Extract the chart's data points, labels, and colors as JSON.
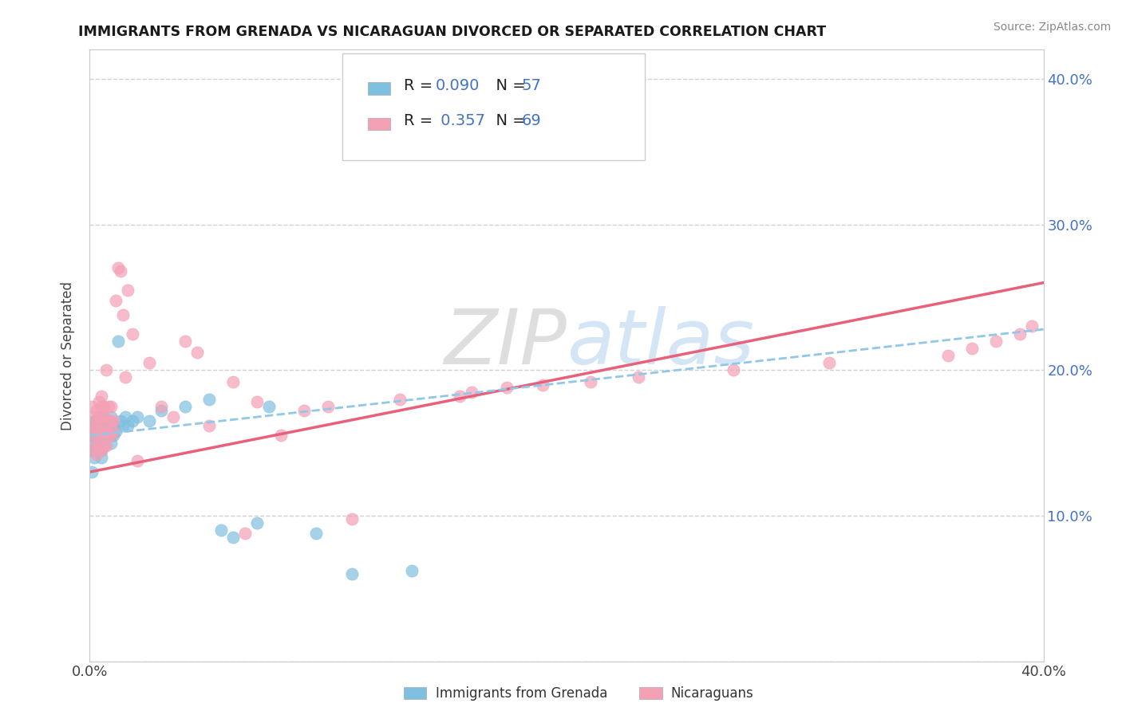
{
  "title": "IMMIGRANTS FROM GRENADA VS NICARAGUAN DIVORCED OR SEPARATED CORRELATION CHART",
  "source": "Source: ZipAtlas.com",
  "ylabel": "Divorced or Separated",
  "xlim": [
    0.0,
    0.4
  ],
  "ylim": [
    0.0,
    0.42
  ],
  "xtick_vals": [
    0.0,
    0.1,
    0.2,
    0.3,
    0.4
  ],
  "xtick_labels": [
    "0.0%",
    "",
    "",
    "",
    "40.0%"
  ],
  "ytick_vals": [
    0.0,
    0.1,
    0.2,
    0.3,
    0.4
  ],
  "ytick_right_labels": [
    "",
    "10.0%",
    "20.0%",
    "30.0%",
    "40.0%"
  ],
  "color_blue": "#7fbfdf",
  "color_pink": "#f4a0b5",
  "color_blue_line": "#8fc8e8",
  "color_pink_line": "#e8607a",
  "R_blue": 0.09,
  "N_blue": 57,
  "R_pink": 0.357,
  "N_pink": 69,
  "legend_label_blue": "Immigrants from Grenada",
  "legend_label_pink": "Nicaraguans",
  "watermark": "ZIPAtlas",
  "blue_scatter_x": [
    0.001,
    0.001,
    0.001,
    0.001,
    0.002,
    0.002,
    0.002,
    0.002,
    0.003,
    0.003,
    0.003,
    0.003,
    0.003,
    0.004,
    0.004,
    0.004,
    0.004,
    0.005,
    0.005,
    0.005,
    0.005,
    0.005,
    0.005,
    0.006,
    0.006,
    0.006,
    0.006,
    0.007,
    0.007,
    0.007,
    0.008,
    0.008,
    0.008,
    0.009,
    0.009,
    0.009,
    0.01,
    0.01,
    0.011,
    0.012,
    0.013,
    0.014,
    0.015,
    0.016,
    0.018,
    0.02,
    0.025,
    0.03,
    0.04,
    0.05,
    0.055,
    0.06,
    0.07,
    0.075,
    0.095,
    0.11,
    0.135
  ],
  "blue_scatter_y": [
    0.155,
    0.145,
    0.13,
    0.16,
    0.15,
    0.165,
    0.14,
    0.155,
    0.145,
    0.155,
    0.16,
    0.165,
    0.148,
    0.152,
    0.158,
    0.145,
    0.16,
    0.14,
    0.155,
    0.15,
    0.162,
    0.168,
    0.145,
    0.155,
    0.16,
    0.148,
    0.165,
    0.155,
    0.165,
    0.16,
    0.158,
    0.162,
    0.165,
    0.15,
    0.168,
    0.155,
    0.162,
    0.155,
    0.158,
    0.22,
    0.165,
    0.162,
    0.168,
    0.162,
    0.165,
    0.168,
    0.165,
    0.172,
    0.175,
    0.18,
    0.09,
    0.085,
    0.095,
    0.175,
    0.088,
    0.06,
    0.062
  ],
  "pink_scatter_x": [
    0.001,
    0.001,
    0.001,
    0.002,
    0.002,
    0.002,
    0.003,
    0.003,
    0.003,
    0.003,
    0.004,
    0.004,
    0.004,
    0.004,
    0.005,
    0.005,
    0.005,
    0.005,
    0.005,
    0.006,
    0.006,
    0.006,
    0.006,
    0.007,
    0.007,
    0.007,
    0.008,
    0.008,
    0.008,
    0.009,
    0.009,
    0.009,
    0.01,
    0.01,
    0.011,
    0.012,
    0.013,
    0.014,
    0.015,
    0.016,
    0.018,
    0.02,
    0.025,
    0.03,
    0.035,
    0.04,
    0.045,
    0.05,
    0.06,
    0.065,
    0.07,
    0.08,
    0.09,
    0.1,
    0.11,
    0.13,
    0.155,
    0.16,
    0.175,
    0.19,
    0.21,
    0.23,
    0.27,
    0.31,
    0.36,
    0.37,
    0.38,
    0.39,
    0.395
  ],
  "pink_scatter_y": [
    0.15,
    0.16,
    0.175,
    0.145,
    0.158,
    0.168,
    0.142,
    0.155,
    0.165,
    0.172,
    0.148,
    0.158,
    0.168,
    0.178,
    0.145,
    0.155,
    0.165,
    0.175,
    0.182,
    0.148,
    0.158,
    0.168,
    0.175,
    0.148,
    0.158,
    0.2,
    0.155,
    0.165,
    0.175,
    0.155,
    0.165,
    0.175,
    0.158,
    0.165,
    0.248,
    0.27,
    0.268,
    0.238,
    0.195,
    0.255,
    0.225,
    0.138,
    0.205,
    0.175,
    0.168,
    0.22,
    0.212,
    0.162,
    0.192,
    0.088,
    0.178,
    0.155,
    0.172,
    0.175,
    0.098,
    0.18,
    0.182,
    0.185,
    0.188,
    0.19,
    0.192,
    0.195,
    0.2,
    0.205,
    0.21,
    0.215,
    0.22,
    0.225,
    0.23
  ]
}
